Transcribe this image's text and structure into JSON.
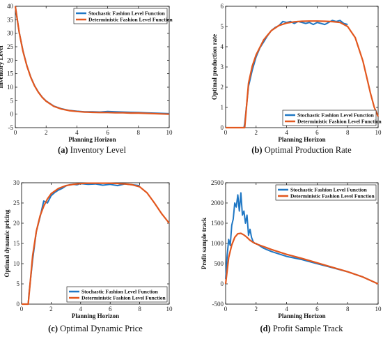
{
  "colors": {
    "stochastic": "#1f77c4",
    "deterministic": "#e2571e",
    "axis": "#000000"
  },
  "chart_data": [
    {
      "type": "line",
      "caption": {
        "label": "(a)",
        "text": "Inventory Level"
      },
      "xlabel": "Planning Horizon",
      "ylabel": "Inventory Level",
      "xlim": [
        0,
        10
      ],
      "ylim": [
        -5,
        40
      ],
      "xticks": [
        "0",
        "2",
        "4",
        "6",
        "8",
        "10"
      ],
      "yticks": [
        "-5",
        "0",
        "5",
        "10",
        "15",
        "20",
        "25",
        "30",
        "35",
        "40"
      ],
      "legend": "top-right",
      "series": [
        {
          "name": "Stochastic Fashion Level Function",
          "x": [
            0,
            0.25,
            0.5,
            0.75,
            1,
            1.25,
            1.5,
            1.75,
            2,
            2.5,
            3,
            3.5,
            4,
            4.5,
            5,
            5.5,
            6,
            6.5,
            7,
            7.5,
            8,
            8.5,
            9,
            9.5,
            10
          ],
          "y": [
            40,
            30.5,
            23.5,
            18,
            13.8,
            10.6,
            8.2,
            6.3,
            4.9,
            3,
            2,
            1.4,
            1.1,
            0.9,
            0.9,
            0.8,
            1.0,
            0.9,
            0.8,
            0.7,
            0.6,
            0.5,
            0.4,
            0.3,
            0.2
          ]
        },
        {
          "name": "Deterministic Fashion Level Function",
          "x": [
            0,
            0.25,
            0.5,
            0.75,
            1,
            1.25,
            1.5,
            1.75,
            2,
            2.5,
            3,
            3.5,
            4,
            4.5,
            5,
            5.5,
            6,
            6.5,
            7,
            7.5,
            8,
            8.5,
            9,
            9.5,
            10
          ],
          "y": [
            40,
            30.4,
            23.3,
            17.9,
            13.7,
            10.5,
            8.1,
            6.2,
            4.8,
            2.9,
            1.9,
            1.3,
            1.0,
            0.8,
            0.7,
            0.6,
            0.6,
            0.5,
            0.5,
            0.4,
            0.4,
            0.3,
            0.2,
            0.1,
            0.0
          ]
        }
      ]
    },
    {
      "type": "line",
      "caption": {
        "label": "(b)",
        "text": "Optimal Production Rate"
      },
      "xlabel": "Planning Horizon",
      "ylabel": "Optimal production rate",
      "xlim": [
        0,
        10
      ],
      "ylim": [
        0,
        6
      ],
      "xticks": [
        "0",
        "2",
        "4",
        "6",
        "8",
        "10"
      ],
      "yticks": [
        "0",
        "1",
        "2",
        "3",
        "4",
        "5",
        "6"
      ],
      "legend": "bottom-right",
      "series": [
        {
          "name": "Stochastic Fashion Level Function",
          "x": [
            0,
            1.2,
            1.25,
            1.5,
            1.75,
            2,
            2.25,
            2.5,
            2.75,
            3,
            3.25,
            3.5,
            3.75,
            4,
            4.25,
            4.5,
            4.75,
            5,
            5.25,
            5.5,
            5.75,
            6,
            6.25,
            6.5,
            6.75,
            7,
            7.25,
            7.5,
            7.75,
            8
          ],
          "y": [
            0,
            0,
            0.2,
            2.05,
            2.85,
            3.5,
            3.95,
            4.25,
            4.55,
            4.8,
            4.95,
            5.05,
            5.25,
            5.2,
            5.25,
            5.15,
            5.25,
            5.2,
            5.15,
            5.2,
            5.1,
            5.2,
            5.15,
            5.1,
            5.2,
            5.3,
            5.25,
            5.3,
            5.15,
            5.1
          ]
        },
        {
          "name": "Deterministic Fashion Level Function",
          "x": [
            0,
            1.25,
            1.5,
            1.75,
            2,
            2.5,
            3,
            3.5,
            4,
            4.5,
            5,
            5.5,
            6,
            6.5,
            7,
            7.5,
            8,
            8.5,
            9,
            9.25,
            9.5,
            9.75,
            10
          ],
          "y": [
            0,
            0,
            2.2,
            3.05,
            3.6,
            4.35,
            4.8,
            5.05,
            5.17,
            5.23,
            5.26,
            5.27,
            5.27,
            5.26,
            5.24,
            5.2,
            5.0,
            4.45,
            3.3,
            2.5,
            1.7,
            1.0,
            0.55
          ]
        }
      ]
    },
    {
      "type": "line",
      "caption": {
        "label": "(c)",
        "text": "Optimal Dynamic Price"
      },
      "xlabel": "Planning Horizon",
      "ylabel": "Optimal dynamic pricing",
      "xlim": [
        0,
        10
      ],
      "ylim": [
        0,
        30
      ],
      "xticks": [
        "0",
        "2",
        "4",
        "6",
        "8",
        "10"
      ],
      "yticks": [
        "0",
        "5",
        "10",
        "15",
        "20",
        "25",
        "30"
      ],
      "legend": "bottom-right",
      "series": [
        {
          "name": "Stochastic Fashion Level Function",
          "x": [
            0,
            0.45,
            0.5,
            0.75,
            1,
            1.25,
            1.5,
            1.75,
            2,
            2.25,
            2.5,
            2.75,
            3,
            3.25,
            3.5,
            3.75,
            4,
            4.5,
            5,
            5.5,
            6,
            6.5,
            7,
            7.5,
            8
          ],
          "y": [
            0,
            0,
            2.5,
            11,
            18,
            21.5,
            25.5,
            25,
            26.8,
            27.6,
            28.2,
            28.6,
            29.2,
            29.5,
            29.6,
            29.5,
            29.8,
            29.6,
            29.7,
            29.4,
            29.6,
            29.3,
            29.7,
            29.5,
            29.3
          ]
        },
        {
          "name": "Deterministic Fashion Level Function",
          "x": [
            0,
            0.45,
            0.75,
            1,
            1.25,
            1.5,
            1.75,
            2,
            2.5,
            3,
            3.5,
            4,
            4.5,
            5,
            5.5,
            6,
            6.5,
            7,
            7.5,
            8,
            8.5,
            9,
            9.5,
            10
          ],
          "y": [
            0,
            0,
            12,
            18,
            21.8,
            24.2,
            26,
            27.3,
            28.6,
            29.3,
            29.6,
            29.8,
            29.9,
            29.9,
            29.9,
            29.9,
            29.8,
            29.7,
            29.5,
            29.0,
            27.5,
            25.0,
            22.3,
            20.0
          ]
        }
      ]
    },
    {
      "type": "line",
      "caption": {
        "label": "(d)",
        "text": "Profit Sample Track"
      },
      "xlabel": "Planning Horizon",
      "ylabel": "Profit sample track",
      "xlim": [
        0,
        10
      ],
      "ylim": [
        -500,
        2500
      ],
      "xticks": [
        "0",
        "2",
        "4",
        "6",
        "8",
        "10"
      ],
      "yticks": [
        "-500",
        "0",
        "500",
        "1000",
        "1500",
        "2000",
        "2500"
      ],
      "legend": "top-right",
      "series": [
        {
          "name": "Stochastic Fashion Level Function",
          "x": [
            0,
            0.1,
            0.2,
            0.3,
            0.4,
            0.5,
            0.6,
            0.7,
            0.8,
            0.9,
            1.0,
            1.1,
            1.2,
            1.3,
            1.4,
            1.5,
            1.6,
            1.7,
            1.8,
            1.9,
            2.0,
            2.2,
            2.5,
            3.0,
            3.5,
            4.0,
            4.5,
            5.0,
            6.0,
            7.0,
            8.0,
            9.0,
            10.0
          ],
          "y": [
            120,
            700,
            1100,
            950,
            1450,
            1600,
            2000,
            1900,
            2200,
            1800,
            2250,
            1700,
            1800,
            1500,
            1700,
            1200,
            1350,
            1150,
            1050,
            1000,
            1000,
            950,
            880,
            800,
            740,
            680,
            640,
            600,
            500,
            400,
            300,
            170,
            0
          ]
        },
        {
          "name": "Deterministic Fashion Level Function",
          "x": [
            0,
            0.2,
            0.4,
            0.6,
            0.8,
            1.0,
            1.2,
            1.4,
            1.6,
            1.8,
            2.0,
            2.5,
            3.0,
            3.5,
            4.0,
            4.5,
            5.0,
            6.0,
            7.0,
            8.0,
            9.0,
            10.0
          ],
          "y": [
            0,
            650,
            960,
            1150,
            1240,
            1250,
            1210,
            1150,
            1080,
            1030,
            990,
            920,
            850,
            790,
            730,
            680,
            630,
            520,
            410,
            300,
            170,
            0
          ]
        }
      ]
    }
  ]
}
